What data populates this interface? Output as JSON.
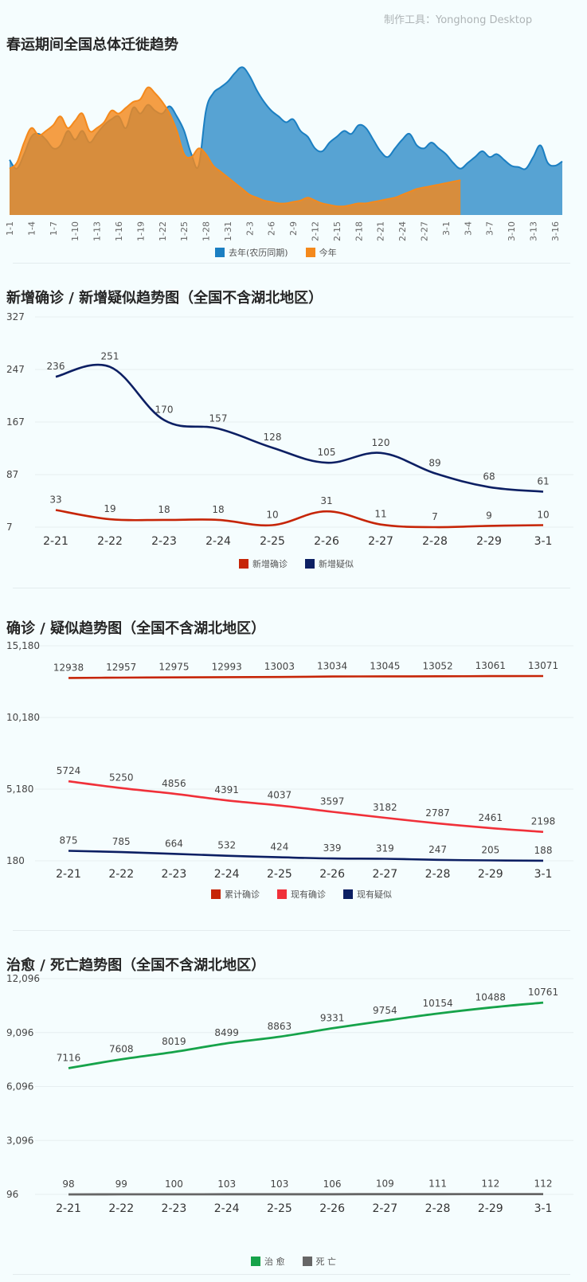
{
  "tool_label": "制作工具：Yonghong Desktop",
  "charts": [
    {
      "type": "area",
      "title": "春运期间全国总体迁徙趋势",
      "x_tick_labels": [
        "1-1",
        "1-4",
        "1-7",
        "1-10",
        "1-13",
        "1-16",
        "1-19",
        "1-22",
        "1-25",
        "1-28",
        "1-31",
        "2-3",
        "2-6",
        "2-9",
        "2-12",
        "2-15",
        "2-18",
        "2-21",
        "2-24",
        "2-27",
        "3-1",
        "3-4",
        "3-7",
        "3-10",
        "3-13",
        "3-16"
      ],
      "x_days": 76,
      "ylim": [
        0,
        100
      ],
      "series": [
        {
          "name": "去年(农历同期)",
          "color": "#1b7fc2",
          "points": [
            [
              0,
              38
            ],
            [
              1,
              32
            ],
            [
              2,
              42
            ],
            [
              3,
              54
            ],
            [
              4,
              56
            ],
            [
              5,
              52
            ],
            [
              6,
              46
            ],
            [
              7,
              48
            ],
            [
              8,
              58
            ],
            [
              9,
              52
            ],
            [
              10,
              58
            ],
            [
              11,
              50
            ],
            [
              12,
              56
            ],
            [
              13,
              62
            ],
            [
              14,
              66
            ],
            [
              15,
              68
            ],
            [
              16,
              60
            ],
            [
              17,
              74
            ],
            [
              18,
              70
            ],
            [
              19,
              76
            ],
            [
              20,
              72
            ],
            [
              21,
              70
            ],
            [
              22,
              75
            ],
            [
              23,
              68
            ],
            [
              24,
              58
            ],
            [
              25,
              42
            ],
            [
              26,
              34
            ],
            [
              27,
              72
            ],
            [
              28,
              84
            ],
            [
              29,
              88
            ],
            [
              30,
              92
            ],
            [
              31,
              98
            ],
            [
              32,
              102
            ],
            [
              33,
              96
            ],
            [
              34,
              86
            ],
            [
              35,
              78
            ],
            [
              36,
              72
            ],
            [
              37,
              68
            ],
            [
              38,
              64
            ],
            [
              39,
              66
            ],
            [
              40,
              58
            ],
            [
              41,
              54
            ],
            [
              42,
              46
            ],
            [
              43,
              44
            ],
            [
              44,
              50
            ],
            [
              45,
              54
            ],
            [
              46,
              58
            ],
            [
              47,
              56
            ],
            [
              48,
              62
            ],
            [
              49,
              60
            ],
            [
              50,
              52
            ],
            [
              51,
              44
            ],
            [
              52,
              40
            ],
            [
              53,
              46
            ],
            [
              54,
              52
            ],
            [
              55,
              56
            ],
            [
              56,
              48
            ],
            [
              57,
              46
            ],
            [
              58,
              50
            ],
            [
              59,
              46
            ],
            [
              60,
              42
            ],
            [
              61,
              36
            ],
            [
              62,
              32
            ],
            [
              63,
              36
            ],
            [
              64,
              40
            ],
            [
              65,
              44
            ],
            [
              66,
              40
            ],
            [
              67,
              42
            ],
            [
              68,
              38
            ],
            [
              69,
              34
            ],
            [
              70,
              33
            ],
            [
              71,
              32
            ],
            [
              72,
              40
            ],
            [
              73,
              48
            ],
            [
              74,
              36
            ],
            [
              75,
              34
            ],
            [
              76,
              37
            ]
          ]
        },
        {
          "name": "今年",
          "color": "#f4891c",
          "points": [
            [
              0,
              32
            ],
            [
              1,
              36
            ],
            [
              2,
              50
            ],
            [
              3,
              60
            ],
            [
              4,
              55
            ],
            [
              5,
              58
            ],
            [
              6,
              62
            ],
            [
              7,
              68
            ],
            [
              8,
              60
            ],
            [
              9,
              65
            ],
            [
              10,
              70
            ],
            [
              11,
              58
            ],
            [
              12,
              60
            ],
            [
              13,
              64
            ],
            [
              14,
              72
            ],
            [
              15,
              70
            ],
            [
              16,
              74
            ],
            [
              17,
              78
            ],
            [
              18,
              80
            ],
            [
              19,
              88
            ],
            [
              20,
              84
            ],
            [
              21,
              78
            ],
            [
              22,
              70
            ],
            [
              23,
              58
            ],
            [
              24,
              42
            ],
            [
              25,
              40
            ],
            [
              26,
              46
            ],
            [
              27,
              42
            ],
            [
              28,
              34
            ],
            [
              29,
              30
            ],
            [
              30,
              26
            ],
            [
              31,
              22
            ],
            [
              32,
              18
            ],
            [
              33,
              14
            ],
            [
              34,
              12
            ],
            [
              35,
              10
            ],
            [
              36,
              9
            ],
            [
              37,
              8
            ],
            [
              38,
              8
            ],
            [
              39,
              9
            ],
            [
              40,
              10
            ],
            [
              41,
              12
            ],
            [
              42,
              10
            ],
            [
              43,
              8
            ],
            [
              44,
              7
            ],
            [
              45,
              6
            ],
            [
              46,
              6
            ],
            [
              47,
              7
            ],
            [
              48,
              8
            ],
            [
              49,
              8
            ],
            [
              50,
              9
            ],
            [
              51,
              10
            ],
            [
              52,
              11
            ],
            [
              53,
              12
            ],
            [
              54,
              14
            ],
            [
              55,
              16
            ],
            [
              56,
              18
            ],
            [
              57,
              19
            ],
            [
              58,
              20
            ],
            [
              59,
              21
            ],
            [
              60,
              22
            ],
            [
              61,
              23
            ],
            [
              62,
              24
            ]
          ]
        }
      ]
    },
    {
      "type": "line",
      "title": "新增确诊 / 新增疑似趋势图（全国不含湖北地区）",
      "categories": [
        "2-21",
        "2-22",
        "2-23",
        "2-24",
        "2-25",
        "2-26",
        "2-27",
        "2-28",
        "2-29",
        "3-1"
      ],
      "y_ticks": [
        "327",
        "247",
        "167",
        "87",
        "7"
      ],
      "ylim": [
        7,
        327
      ],
      "series": [
        {
          "name": "新增确诊",
          "color": "#c62507",
          "values": [
            33,
            19,
            18,
            18,
            10,
            31,
            11,
            7,
            9,
            10
          ]
        },
        {
          "name": "新增疑似",
          "color": "#0c1f63",
          "values": [
            236,
            251,
            170,
            157,
            128,
            105,
            120,
            89,
            68,
            61
          ]
        }
      ]
    },
    {
      "type": "line",
      "title": "确诊 / 疑似趋势图（全国不含湖北地区）",
      "categories": [
        "2-21",
        "2-22",
        "2-23",
        "2-24",
        "2-25",
        "2-26",
        "2-27",
        "2-28",
        "2-29",
        "3-1"
      ],
      "y_ticks": [
        "15,180",
        "10,180",
        "5,180",
        "180"
      ],
      "ylim": [
        180,
        15180
      ],
      "series": [
        {
          "name": "累计确诊",
          "color": "#c62507",
          "values": [
            12938,
            12957,
            12975,
            12993,
            13003,
            13034,
            13045,
            13052,
            13061,
            13071
          ]
        },
        {
          "name": "现有确诊",
          "color": "#f03039",
          "values": [
            5724,
            5250,
            4856,
            4391,
            4037,
            3597,
            3182,
            2787,
            2461,
            2198
          ]
        },
        {
          "name": "现有疑似",
          "color": "#0c1f63",
          "values": [
            875,
            785,
            664,
            532,
            424,
            339,
            319,
            247,
            205,
            188
          ]
        }
      ]
    },
    {
      "type": "line",
      "title": "治愈 / 死亡趋势图（全国不含湖北地区）",
      "categories": [
        "2-21",
        "2-22",
        "2-23",
        "2-24",
        "2-25",
        "2-26",
        "2-27",
        "2-28",
        "2-29",
        "3-1"
      ],
      "y_ticks": [
        "12,096",
        "9,096",
        "6,096",
        "3,096",
        "96"
      ],
      "ylim": [
        96,
        12096
      ],
      "series": [
        {
          "name": "治 愈",
          "color": "#16a34a",
          "values": [
            7116,
            7608,
            8019,
            8499,
            8863,
            9331,
            9754,
            10154,
            10488,
            10761
          ]
        },
        {
          "name": "死 亡",
          "color": "#666666",
          "values": [
            98,
            99,
            100,
            103,
            103,
            106,
            109,
            111,
            112,
            112
          ]
        }
      ]
    }
  ]
}
